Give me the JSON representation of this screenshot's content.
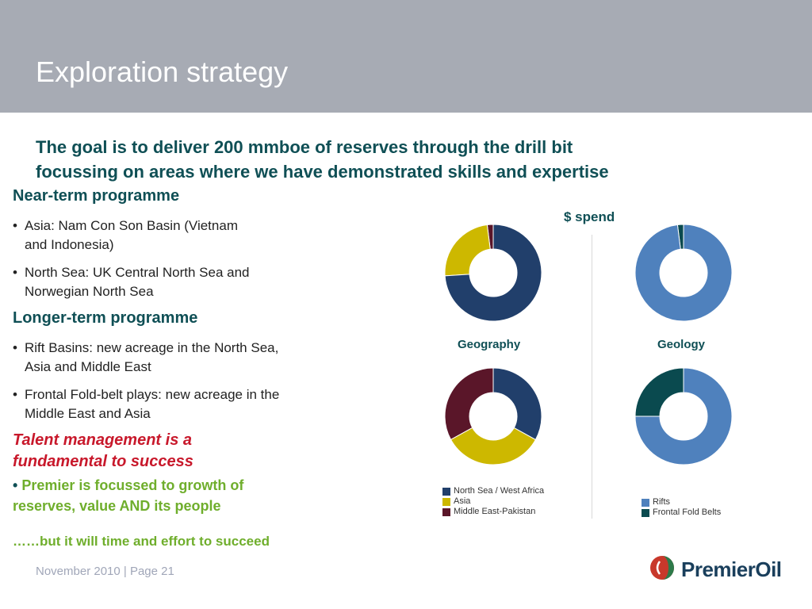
{
  "header": {
    "title": "Exploration strategy"
  },
  "goal": {
    "line1": "The goal is to deliver 200 mmboe of  reserves through the drill bit",
    "line2": "focussing on areas where we have demonstrated skills and expertise"
  },
  "near_term": {
    "heading": "Near-term programme",
    "bullets": [
      {
        "line1": "Asia: Nam Con Son Basin (Vietnam",
        "line2": "and Indonesia)"
      },
      {
        "line1": "North Sea: UK Central North Sea and",
        "line2": "Norwegian North Sea"
      }
    ]
  },
  "longer_term": {
    "heading": "Longer-term programme",
    "bullets": [
      {
        "line1": "Rift Basins: new acreage in the North Sea,",
        "line2": "Asia and Middle East"
      },
      {
        "line1": "Frontal Fold-belt plays: new acreage in the",
        "line2": "Middle East and Asia"
      }
    ]
  },
  "talent": {
    "line1": "Talent management is a",
    "line2": "fundamental to success"
  },
  "premier": {
    "bullet": "•",
    "line1": "Premier is focussed to growth of",
    "line2": "reserves, value AND its people"
  },
  "succeed": "……but it will time and effort to succeed",
  "spend_label": "$ spend",
  "colors": {
    "teal_text": "#0f4f55",
    "north_sea": "#213f6b",
    "asia": "#cdb800",
    "middle_east": "#5a1629",
    "rifts": "#4f81bd",
    "frontal": "#0a4a4f",
    "talent_red": "#c8182b",
    "green": "#6fae2c"
  },
  "chart_data": [
    {
      "type": "pie",
      "subtype": "donut",
      "group": "$ spend",
      "title": "Geography",
      "categories": [
        "North Sea / West Africa",
        "Asia",
        "Middle East-Pakistan"
      ],
      "values": [
        74,
        24,
        2
      ]
    },
    {
      "type": "pie",
      "subtype": "donut",
      "group": "$ spend",
      "title": "Geology",
      "categories": [
        "Rifts",
        "Frontal Fold Belts"
      ],
      "values": [
        98,
        2
      ]
    },
    {
      "type": "pie",
      "subtype": "donut",
      "title": "",
      "categories": [
        "North Sea / West Africa",
        "Asia",
        "Middle East-Pakistan"
      ],
      "values": [
        33,
        34,
        33
      ]
    },
    {
      "type": "pie",
      "subtype": "donut",
      "title": "",
      "categories": [
        "Rifts",
        "Frontal Fold Belts"
      ],
      "values": [
        75,
        25
      ]
    }
  ],
  "legend_geography": [
    {
      "label": "North Sea / West Africa",
      "color": "#213f6b"
    },
    {
      "label": "Asia",
      "color": "#cdb800"
    },
    {
      "label": "Middle East-Pakistan",
      "color": "#5a1629"
    }
  ],
  "legend_geology": [
    {
      "label": "Rifts",
      "color": "#4f81bd"
    },
    {
      "label": "Frontal Fold Belts",
      "color": "#0a4a4f"
    }
  ],
  "footer": "November 2010 | Page 21",
  "logo": {
    "text": "PremierOil"
  }
}
